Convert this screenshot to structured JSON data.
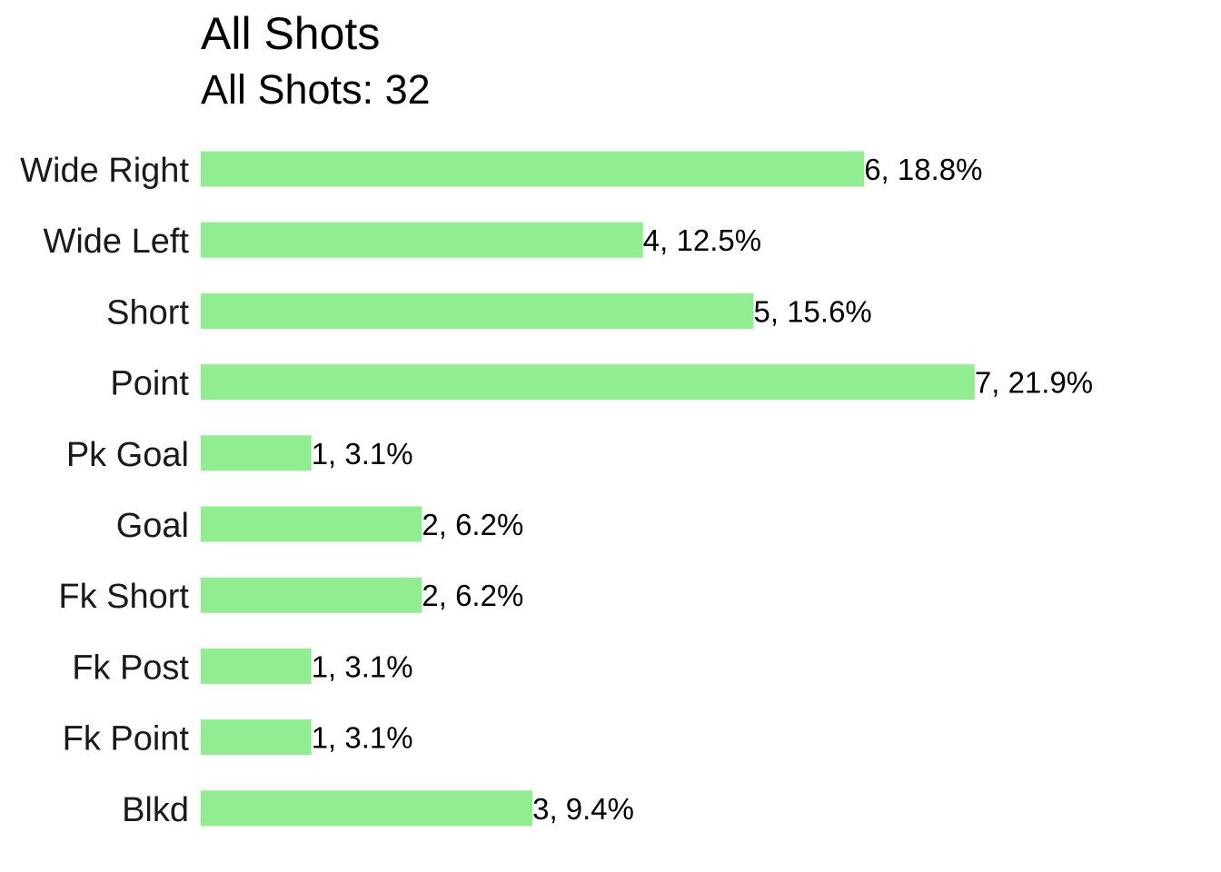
{
  "chart_data": {
    "type": "bar",
    "orientation": "horizontal",
    "title": "All Shots",
    "subtitle": "All Shots: 32",
    "categories": [
      "Wide Right",
      "Wide Left",
      "Short",
      "Point",
      "Pk Goal",
      "Goal",
      "Fk Short",
      "Fk Post",
      "Fk Point",
      "Blkd"
    ],
    "values": [
      6,
      4,
      5,
      7,
      1,
      2,
      2,
      1,
      1,
      3
    ],
    "data_labels": [
      "6, 18.8%",
      "4, 12.5%",
      "5, 15.6%",
      "7, 21.9%",
      "1, 3.1%",
      "2, 6.2%",
      "2, 6.2%",
      "1, 3.1%",
      "1, 3.1%",
      "3, 9.4%"
    ],
    "xlabel": "",
    "ylabel": "",
    "xlim": [
      0,
      7
    ],
    "grid": false,
    "legend": "none",
    "bar_color": "#90ee90"
  }
}
